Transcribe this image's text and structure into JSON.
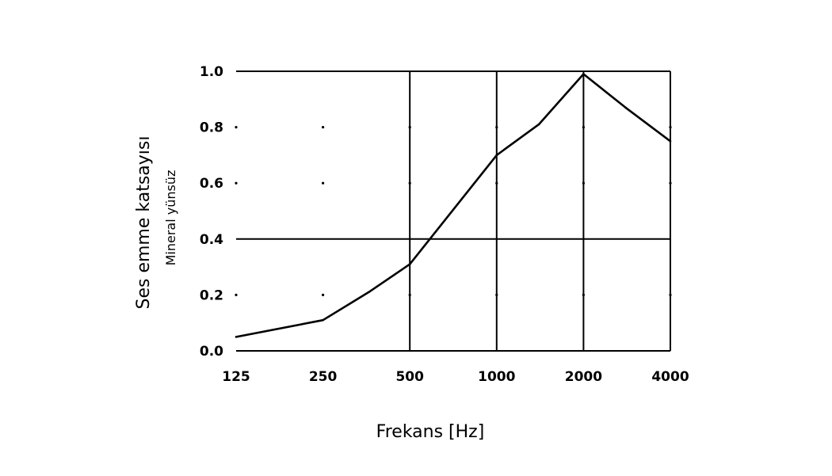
{
  "chart_data": {
    "type": "line",
    "x_scale": "log2",
    "x_ticks": [
      "125",
      "250",
      "500",
      "1000",
      "2000",
      "4000"
    ],
    "y_ticks": [
      "0.0",
      "0.2",
      "0.4",
      "0.6",
      "0.8",
      "1.0"
    ],
    "ylim": [
      0,
      1.0
    ],
    "xlabel": "Frekans [Hz]",
    "ylabel": "Ses emme katsayısı",
    "ylabel_sub": "Mineral yünsüz",
    "grid": "major lines at x = 500, 1000, 2000, 4000 and y = 0.4, 1.0; dots elsewhere",
    "series": [
      {
        "x": [
          125,
          250,
          360,
          500,
          1000,
          1400,
          2000,
          2800,
          4000
        ],
        "y": [
          0.05,
          0.11,
          0.21,
          0.31,
          0.7,
          0.81,
          0.99,
          0.87,
          0.75
        ]
      }
    ]
  }
}
